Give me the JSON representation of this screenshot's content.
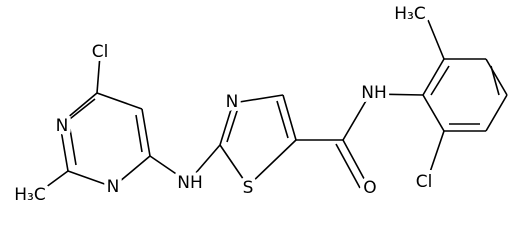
{
  "atoms": [
    {
      "label": "Cl"
    },
    {
      "label": "N"
    },
    {
      "label": "N"
    },
    {
      "label": "H₃C"
    },
    {
      "label": "NH"
    },
    {
      "label": "N"
    },
    {
      "label": "S"
    },
    {
      "label": "O"
    },
    {
      "label": "NH"
    },
    {
      "label": "H₃C"
    },
    {
      "label": "Cl"
    }
  ]
}
